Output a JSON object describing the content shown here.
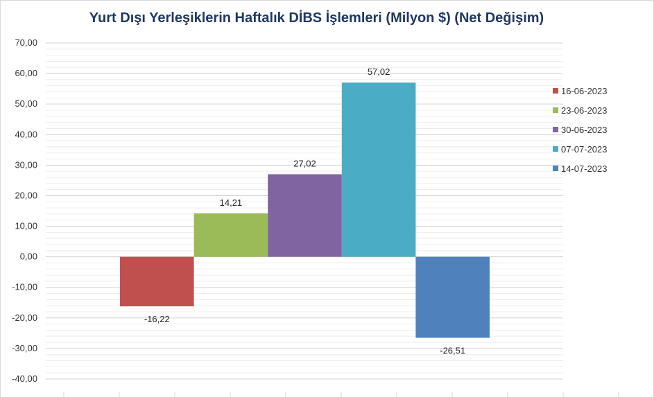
{
  "chart_data": {
    "type": "bar",
    "title": "Yurt Dışı Yerleşiklerin Haftalık DİBS İşlemleri (Milyon $) (Net Değişim)",
    "xlabel": "",
    "ylabel": "",
    "ylim": [
      -40,
      70
    ],
    "y_ticks": [
      "70,00",
      "60,00",
      "50,00",
      "40,00",
      "30,00",
      "20,00",
      "10,00",
      "0,00",
      "-10,00",
      "-20,00",
      "-30,00",
      "-40,00"
    ],
    "grid": true,
    "legend_position": "right",
    "series": [
      {
        "name": "16-06-2023",
        "value": -16.22,
        "label": "-16,22",
        "color": "#c0504d"
      },
      {
        "name": "23-06-2023",
        "value": 14.21,
        "label": "14,21",
        "color": "#9bbb59"
      },
      {
        "name": "30-06-2023",
        "value": 27.02,
        "label": "27,02",
        "color": "#8064a2"
      },
      {
        "name": "07-07-2023",
        "value": 57.02,
        "label": "57,02",
        "color": "#4bacc6"
      },
      {
        "name": "14-07-2023",
        "value": -26.51,
        "label": "-26,51",
        "color": "#4f81bd"
      }
    ]
  }
}
